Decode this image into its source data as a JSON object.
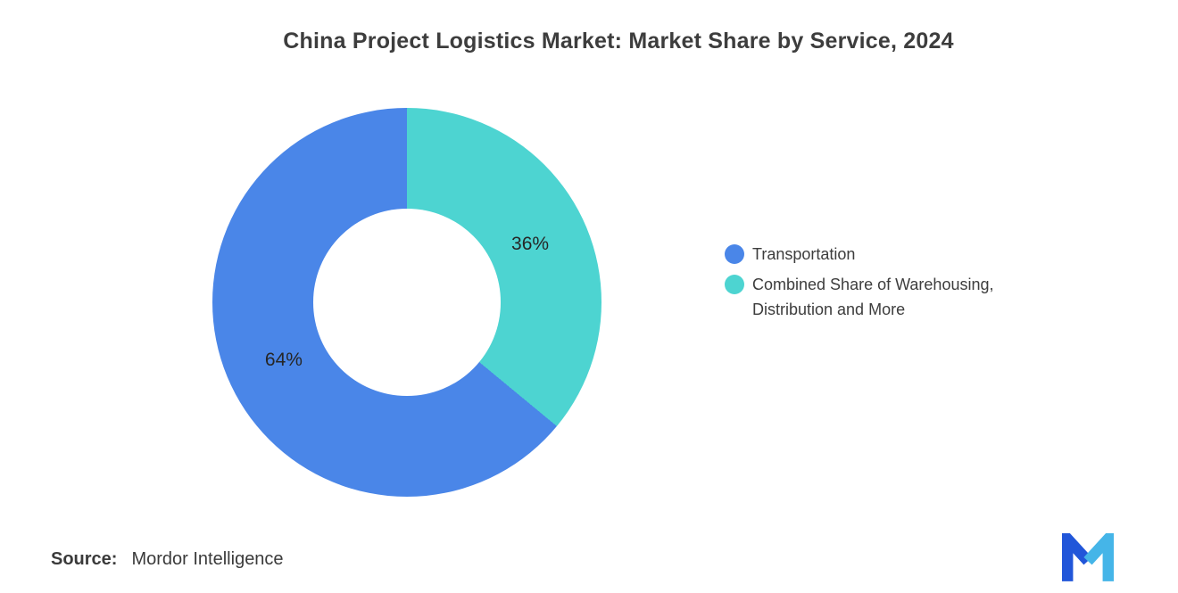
{
  "title": "China Project Logistics Market: Market Share by Service, 2024",
  "chart_data": {
    "type": "pie",
    "subtype": "donut",
    "title": "China Project Logistics Market: Market Share by Service, 2024",
    "unit": "%",
    "start_angle": "12 o'clock, clockwise",
    "hole_ratio": 0.48,
    "legend_position": "right",
    "segments": [
      {
        "label": "Transportation",
        "value": 64,
        "start_pct": 36,
        "color": "#4A86E8",
        "data_label": "64%"
      },
      {
        "label": "Combined Share of Warehousing, Distribution and More",
        "value": 36,
        "start_pct": 0,
        "color": "#4DD4D1",
        "data_label": "36%"
      }
    ]
  },
  "legend": {
    "items": [
      {
        "label": "Transportation",
        "color": "#4A86E8"
      },
      {
        "label": "Combined Share of Warehousing,\nDistribution and More",
        "color": "#4DD4D1"
      }
    ]
  },
  "source": {
    "label": "Source:",
    "value": "Mordor Intelligence"
  },
  "logo": {
    "name": "Mordor Intelligence logo",
    "color_left": "#2156D9",
    "color_right": "#45B5E8"
  }
}
